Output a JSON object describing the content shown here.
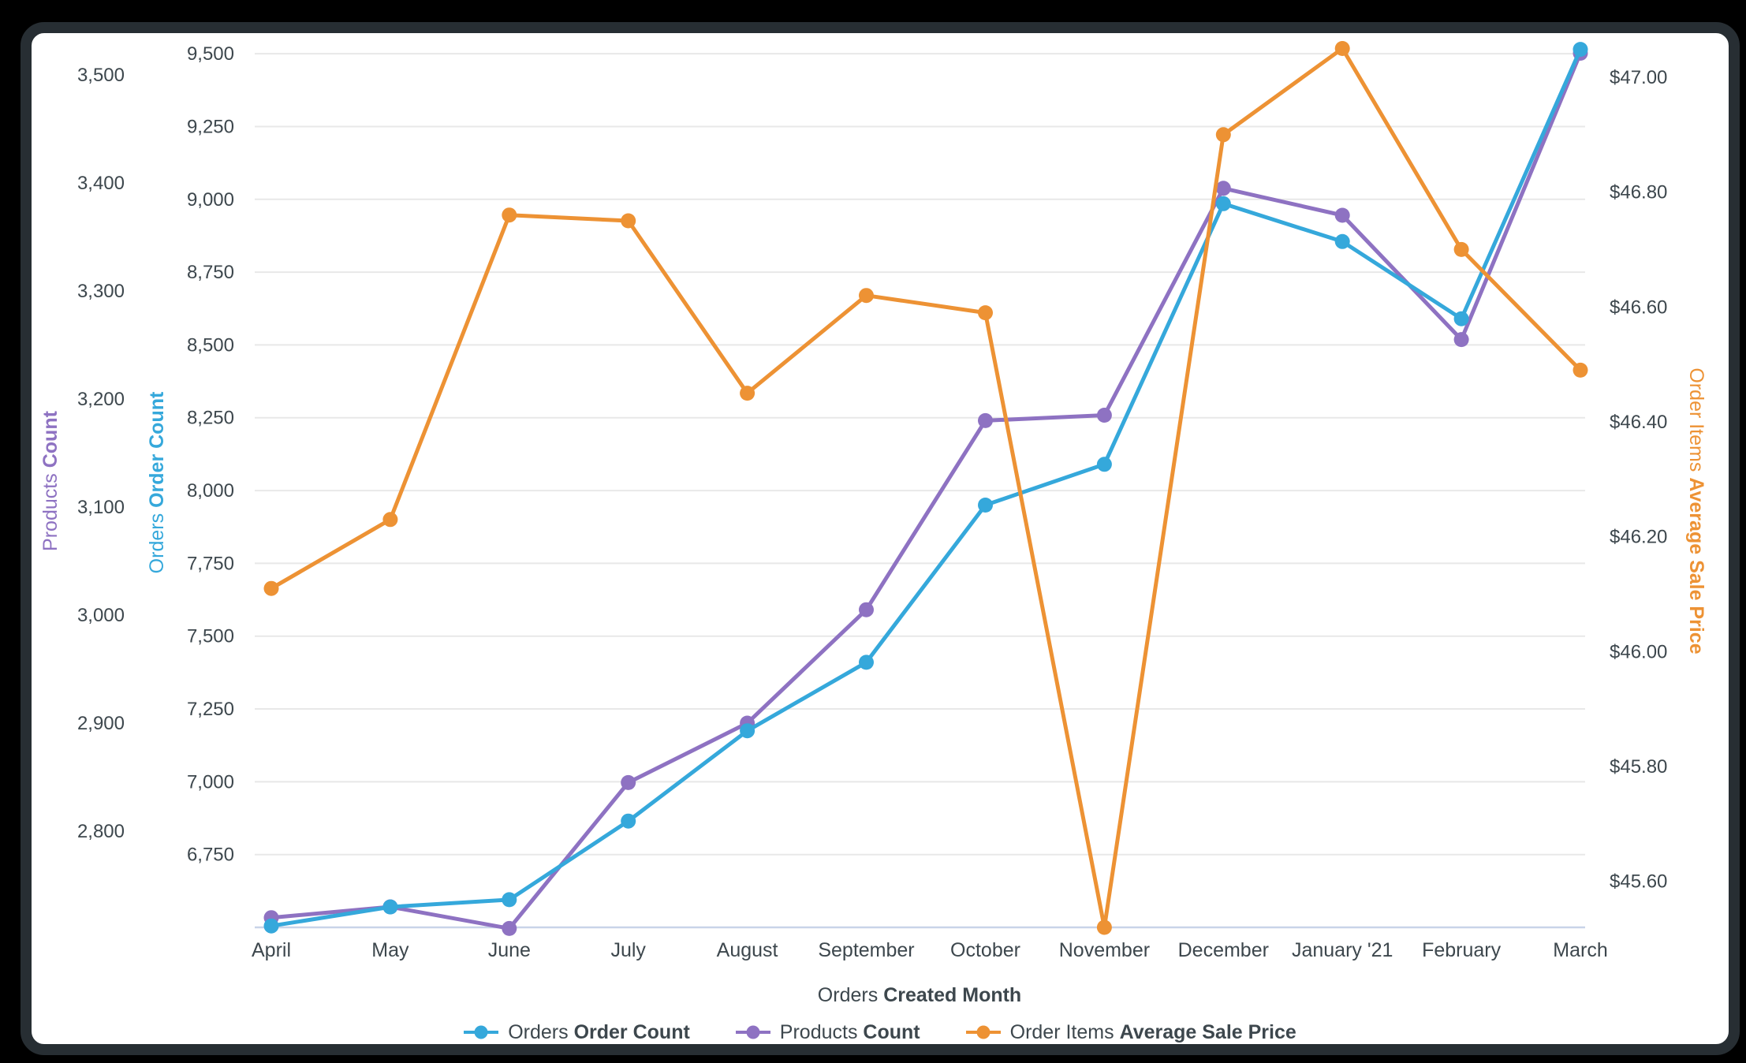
{
  "chart_data": {
    "type": "line",
    "categories": [
      "April",
      "May",
      "June",
      "July",
      "August",
      "September",
      "October",
      "November",
      "December",
      "January '21",
      "February",
      "March"
    ],
    "x_axis": {
      "title_regular": "Orders",
      "title_bold": "Created Month"
    },
    "series": [
      {
        "name_regular": "Orders",
        "name_bold": "Order Count",
        "axis": "orders",
        "color": "#35A8DB",
        "values": [
          6505,
          6570,
          6595,
          6865,
          7175,
          7410,
          7950,
          8090,
          8985,
          8855,
          8590,
          9515
        ]
      },
      {
        "name_regular": "Products",
        "name_bold": "Count",
        "axis": "products",
        "color": "#8E72C2",
        "values": [
          2720,
          2730,
          2710,
          2845,
          2900,
          3005,
          3180,
          3185,
          3395,
          3370,
          3255,
          3520
        ]
      },
      {
        "name_regular": "Order Items",
        "name_bold": "Average Sale Price",
        "axis": "price",
        "color": "#ED9234",
        "values": [
          46.11,
          46.23,
          46.76,
          46.75,
          46.45,
          46.62,
          46.59,
          45.52,
          46.9,
          47.05,
          46.7,
          46.49
        ]
      }
    ],
    "axes": {
      "products": {
        "side": "left-outer",
        "color": "#8E72C2",
        "title_regular": "Products",
        "title_bold": "Count",
        "min": 2711,
        "max": 3543,
        "format": "number",
        "ticks": [
          3500,
          3400,
          3300,
          3200,
          3100,
          3000,
          2900,
          2800
        ]
      },
      "orders": {
        "side": "left-inner",
        "color": "#35A8DB",
        "title_regular": "Orders",
        "title_bold": "Order Count",
        "min": 6500,
        "max": 9587,
        "format": "number",
        "gridlines": true,
        "ticks": [
          9500,
          9250,
          9000,
          8750,
          8500,
          8250,
          8000,
          7750,
          7500,
          7250,
          7000,
          6750
        ]
      },
      "price": {
        "side": "right",
        "color": "#ED9234",
        "title_regular": "Order Items",
        "title_bold": "Average Sale Price",
        "min": 45.52,
        "max": 47.085,
        "format": "usd",
        "ticks": [
          47.0,
          46.8,
          46.6,
          46.4,
          46.2,
          46.0,
          45.8,
          45.6
        ]
      }
    },
    "draw_order": [
      1,
      0,
      2
    ],
    "grid": true,
    "legend_position": "bottom",
    "colors": {
      "gridline": "#E8E8E8",
      "baseline": "#C9D4E8",
      "tick_text": "#3D474D"
    }
  }
}
